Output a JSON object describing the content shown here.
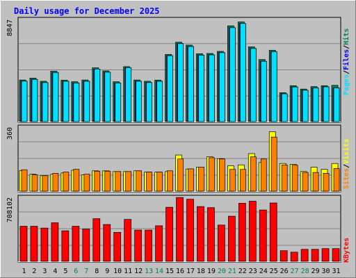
{
  "chart_data": [
    {
      "type": "bar",
      "title": "Daily usage for December 2025",
      "categories": [
        "1",
        "2",
        "3",
        "4",
        "5",
        "6",
        "7",
        "8",
        "9",
        "10",
        "11",
        "12",
        "13",
        "14",
        "15",
        "16",
        "17",
        "18",
        "19",
        "20",
        "21",
        "22",
        "23",
        "24",
        "25",
        "26",
        "27",
        "28",
        "29",
        "30",
        "31"
      ],
      "weekend_days": [
        "6",
        "7",
        "13",
        "14",
        "20",
        "21",
        "27",
        "28"
      ],
      "panel": "top",
      "ymax_label": "8847",
      "ylim": [
        0,
        8847
      ],
      "legend": [
        "Pages",
        "/",
        "Files",
        "/",
        "Hits"
      ],
      "series": [
        {
          "name": "Hits",
          "color": "#00805C",
          "values": [
            3640,
            3800,
            3530,
            4400,
            3630,
            3490,
            3640,
            4690,
            4420,
            3490,
            4790,
            3640,
            3530,
            3630,
            5840,
            6890,
            6640,
            5900,
            5920,
            6100,
            8300,
            8630,
            6490,
            5400,
            6200,
            2550,
            3150,
            2860,
            3070,
            3150,
            3180
          ]
        },
        {
          "name": "Files",
          "color": "#0000FF",
          "values": [
            3540,
            3690,
            3420,
            4280,
            3530,
            3380,
            3530,
            4580,
            4310,
            3380,
            4700,
            3530,
            3420,
            3530,
            5730,
            6770,
            6520,
            5780,
            5800,
            5990,
            8140,
            8500,
            6350,
            5250,
            6080,
            2450,
            3040,
            2760,
            2960,
            3050,
            2960
          ]
        },
        {
          "name": "Pages",
          "color": "#00E0FF",
          "values": [
            3540,
            3690,
            3420,
            4280,
            3530,
            3380,
            3530,
            4580,
            4310,
            3380,
            4700,
            3530,
            3420,
            3530,
            5730,
            6770,
            6520,
            5780,
            5800,
            5990,
            8140,
            8500,
            6350,
            5250,
            6080,
            2450,
            3040,
            2760,
            2960,
            3050,
            2960
          ]
        }
      ]
    },
    {
      "type": "bar",
      "panel": "middle",
      "ymax_label": "360",
      "ylim": [
        0,
        360
      ],
      "legend": [
        "Sites",
        "/",
        "Visits"
      ],
      "series": [
        {
          "name": "Visits",
          "color": "#FFFF00",
          "values": [
            118,
            98,
            90,
            98,
            105,
            120,
            95,
            117,
            117,
            113,
            113,
            117,
            110,
            110,
            113,
            205,
            127,
            138,
            195,
            185,
            145,
            150,
            213,
            163,
            335,
            158,
            153,
            113,
            137,
            125,
            158
          ]
        },
        {
          "name": "Sites",
          "color": "#FF8000",
          "values": [
            123,
            95,
            90,
            103,
            110,
            125,
            98,
            115,
            115,
            113,
            113,
            117,
            110,
            110,
            117,
            183,
            128,
            138,
            190,
            183,
            125,
            125,
            195,
            183,
            305,
            150,
            148,
            108,
            108,
            103,
            130
          ]
        }
      ]
    },
    {
      "type": "bar",
      "panel": "bottom",
      "ymax_label": "708102",
      "ylim": [
        0,
        708102
      ],
      "legend": [
        "KBytes"
      ],
      "series": [
        {
          "name": "KBytes",
          "color": "#FF0000",
          "values": [
            392000,
            392000,
            372000,
            430000,
            342000,
            392000,
            361000,
            475000,
            411000,
            325000,
            467000,
            350000,
            350000,
            397000,
            600000,
            707000,
            688000,
            608000,
            596000,
            405000,
            502000,
            644000,
            666000,
            570000,
            647000,
            124000,
            108000,
            139000,
            139000,
            147000,
            147000
          ]
        }
      ]
    }
  ]
}
